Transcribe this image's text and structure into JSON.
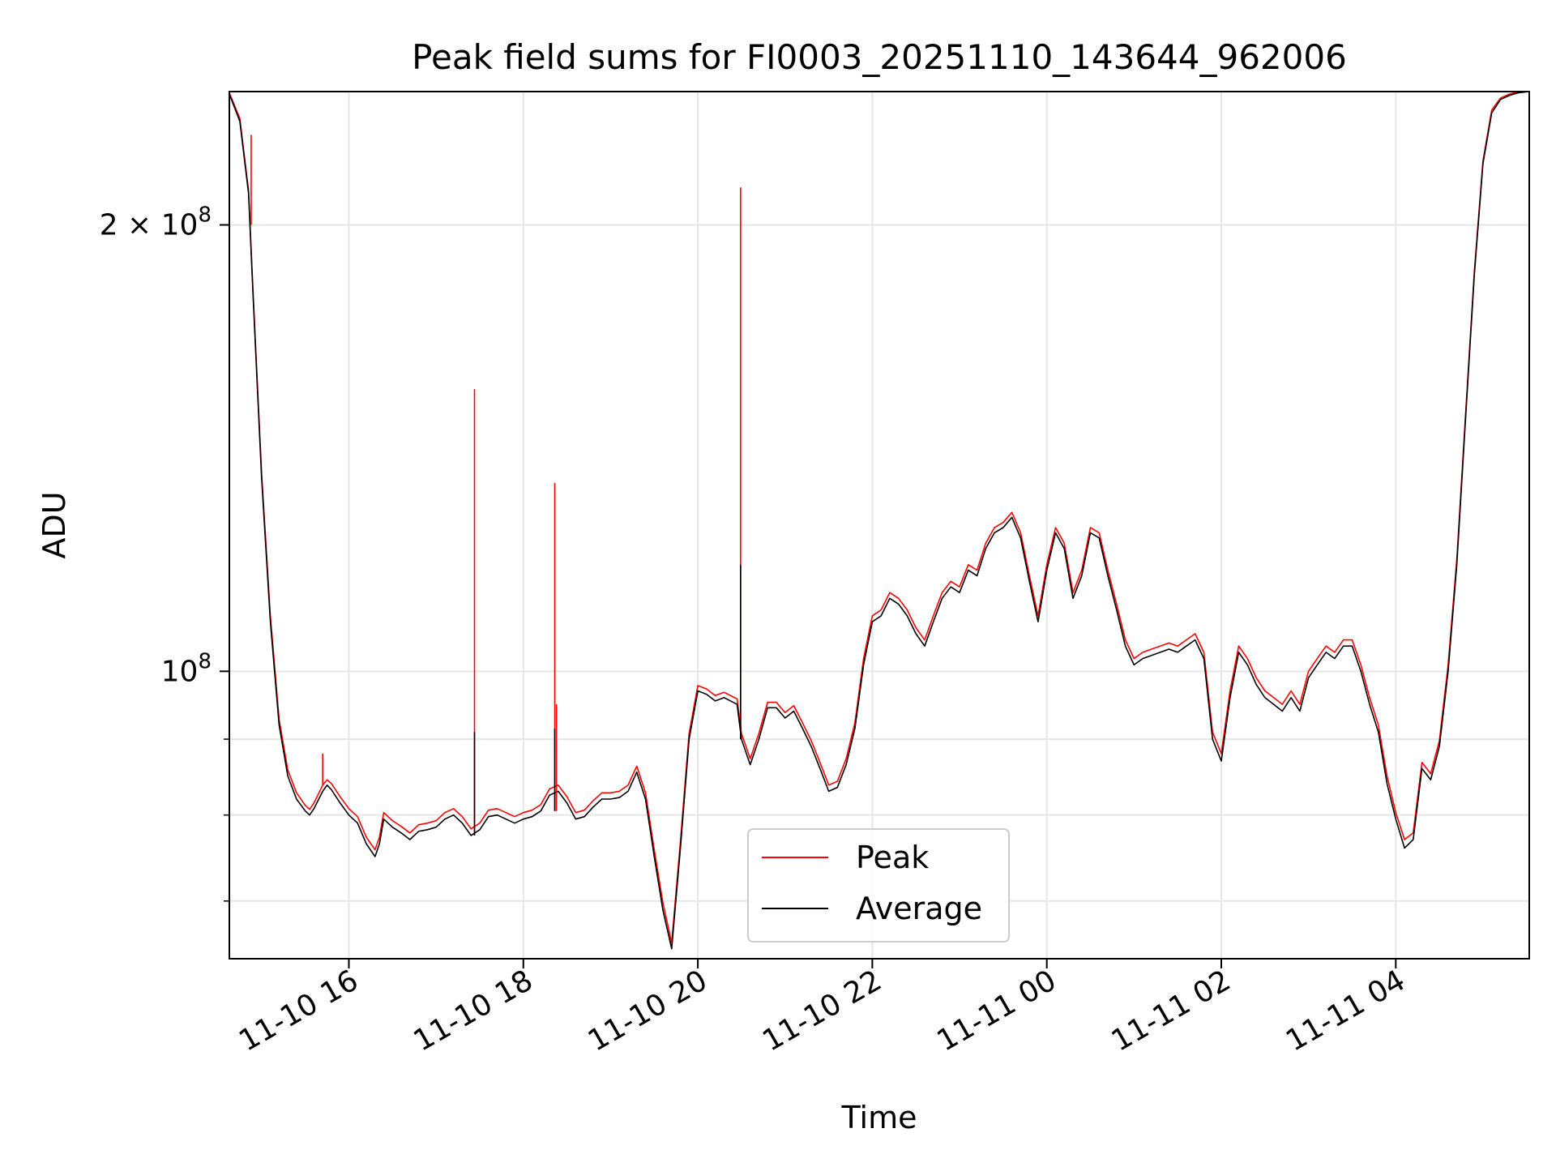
{
  "chart_data": {
    "type": "line",
    "title": "Peak field sums for FI0003_20251110_143644_962006",
    "xlabel": "Time",
    "ylabel": "ADU",
    "yscale": "log",
    "xlim_hours": [
      14.63,
      29.53
    ],
    "ylim": [
      64000000,
      246000000
    ],
    "x_unit": "hours since 11-10 00:00",
    "x_ticks": [
      {
        "value": 16,
        "label": "11-10 16"
      },
      {
        "value": 18,
        "label": "11-10 18"
      },
      {
        "value": 20,
        "label": "11-10 20"
      },
      {
        "value": 22,
        "label": "11-10 22"
      },
      {
        "value": 24,
        "label": "11-11 00"
      },
      {
        "value": 26,
        "label": "11-11 02"
      },
      {
        "value": 28,
        "label": "11-11 04"
      }
    ],
    "y_major_ticks": [
      {
        "value": 100000000,
        "label_base": "10",
        "label_exp": "8",
        "label_coef": ""
      },
      {
        "value": 200000000,
        "label_base": "10",
        "label_exp": "8",
        "label_coef": "2 × "
      }
    ],
    "y_minor_grid": [
      70000000,
      80000000,
      90000000
    ],
    "grid": true,
    "legend": {
      "placement": "lower-center",
      "entries": [
        {
          "name": "Peak",
          "color": "#ff0000"
        },
        {
          "name": "Average",
          "color": "#000000"
        }
      ]
    },
    "series": [
      {
        "name": "Average",
        "color": "#000000",
        "x": [
          14.63,
          14.75,
          14.85,
          14.9,
          15.0,
          15.1,
          15.2,
          15.3,
          15.4,
          15.5,
          15.55,
          15.6,
          15.7,
          15.75,
          15.8,
          15.9,
          16.0,
          16.1,
          16.2,
          16.3,
          16.35,
          16.4,
          16.5,
          16.6,
          16.7,
          16.8,
          16.9,
          17.0,
          17.1,
          17.2,
          17.3,
          17.4,
          17.5,
          17.6,
          17.7,
          17.8,
          17.9,
          18.0,
          18.1,
          18.2,
          18.3,
          18.4,
          18.5,
          18.6,
          18.7,
          18.8,
          18.9,
          19.0,
          19.1,
          19.2,
          19.3,
          19.4,
          19.5,
          19.6,
          19.7,
          19.8,
          19.9,
          20.0,
          20.1,
          20.2,
          20.3,
          20.45,
          20.5,
          20.6,
          20.7,
          20.8,
          20.9,
          21.0,
          21.1,
          21.2,
          21.3,
          21.4,
          21.5,
          21.6,
          21.7,
          21.8,
          21.9,
          22.0,
          22.1,
          22.2,
          22.3,
          22.4,
          22.5,
          22.6,
          22.7,
          22.8,
          22.9,
          23.0,
          23.1,
          23.2,
          23.3,
          23.4,
          23.5,
          23.6,
          23.7,
          23.8,
          23.9,
          24.0,
          24.1,
          24.2,
          24.3,
          24.4,
          24.5,
          24.6,
          24.7,
          24.8,
          24.9,
          25.0,
          25.1,
          25.2,
          25.3,
          25.4,
          25.5,
          25.6,
          25.7,
          25.8,
          25.9,
          26.0,
          26.1,
          26.2,
          26.3,
          26.4,
          26.5,
          26.6,
          26.7,
          26.8,
          26.9,
          27.0,
          27.1,
          27.2,
          27.3,
          27.4,
          27.5,
          27.6,
          27.7,
          27.8,
          27.9,
          28.0,
          28.1,
          28.2,
          28.3,
          28.4,
          28.5,
          28.6,
          28.7,
          28.8,
          28.9,
          29.0,
          29.1,
          29.2,
          29.3,
          29.4,
          29.53
        ],
        "y": [
          245000000,
          235000000,
          210000000,
          180000000,
          135000000,
          108000000,
          92000000,
          85000000,
          82000000,
          80500000,
          80000000,
          80800000,
          83000000,
          83800000,
          83200000,
          81500000,
          80000000,
          79000000,
          76500000,
          75000000,
          76500000,
          79500000,
          78500000,
          77800000,
          77000000,
          78000000,
          78200000,
          78500000,
          79500000,
          80000000,
          79000000,
          77500000,
          78200000,
          79800000,
          80000000,
          79500000,
          79000000,
          79500000,
          79800000,
          80500000,
          82500000,
          83000000,
          81500000,
          79500000,
          79800000,
          81000000,
          82000000,
          82000000,
          82200000,
          83000000,
          85500000,
          82000000,
          75000000,
          69000000,
          65000000,
          76000000,
          90000000,
          97000000,
          96500000,
          95500000,
          96000000,
          95000000,
          90000000,
          86500000,
          90000000,
          94500000,
          94500000,
          93000000,
          94000000,
          91500000,
          89000000,
          86000000,
          83000000,
          83500000,
          86500000,
          91500000,
          101000000,
          108000000,
          109000000,
          112000000,
          111000000,
          109000000,
          106000000,
          104000000,
          108000000,
          112000000,
          114000000,
          113000000,
          117000000,
          116000000,
          121000000,
          124000000,
          125000000,
          127000000,
          123000000,
          115000000,
          108000000,
          117000000,
          124000000,
          121000000,
          112000000,
          116000000,
          124000000,
          123000000,
          116000000,
          110000000,
          104000000,
          101000000,
          102000000,
          102500000,
          103000000,
          103500000,
          103000000,
          104000000,
          105000000,
          102000000,
          90000000,
          87000000,
          96000000,
          103000000,
          101000000,
          98000000,
          96000000,
          95000000,
          94000000,
          96000000,
          94000000,
          99000000,
          101000000,
          103000000,
          102000000,
          104000000,
          104000000,
          100000000,
          95000000,
          91000000,
          84000000,
          79500000,
          76000000,
          77000000,
          86000000,
          84500000,
          89000000,
          100000000,
          118000000,
          148000000,
          185000000,
          220000000,
          238000000,
          243000000,
          244500000,
          245500000,
          246000000
        ]
      },
      {
        "name": "Peak",
        "color": "#ff0000",
        "x": [
          14.63,
          14.75,
          14.85,
          14.9,
          15.0,
          15.1,
          15.2,
          15.3,
          15.4,
          15.5,
          15.55,
          15.6,
          15.7,
          15.75,
          15.8,
          15.9,
          16.0,
          16.1,
          16.2,
          16.3,
          16.35,
          16.4,
          16.5,
          16.6,
          16.7,
          16.8,
          16.9,
          17.0,
          17.1,
          17.2,
          17.3,
          17.4,
          17.5,
          17.6,
          17.7,
          17.8,
          17.9,
          18.0,
          18.1,
          18.2,
          18.3,
          18.4,
          18.5,
          18.6,
          18.7,
          18.8,
          18.9,
          19.0,
          19.1,
          19.2,
          19.3,
          19.4,
          19.5,
          19.6,
          19.7,
          19.8,
          19.9,
          20.0,
          20.1,
          20.2,
          20.3,
          20.45,
          20.5,
          20.6,
          20.7,
          20.8,
          20.9,
          21.0,
          21.1,
          21.2,
          21.3,
          21.4,
          21.5,
          21.6,
          21.7,
          21.8,
          21.9,
          22.0,
          22.1,
          22.2,
          22.3,
          22.4,
          22.5,
          22.6,
          22.7,
          22.8,
          22.9,
          23.0,
          23.1,
          23.2,
          23.3,
          23.4,
          23.5,
          23.6,
          23.7,
          23.8,
          23.9,
          24.0,
          24.1,
          24.2,
          24.3,
          24.4,
          24.5,
          24.6,
          24.7,
          24.8,
          24.9,
          25.0,
          25.1,
          25.2,
          25.3,
          25.4,
          25.5,
          25.6,
          25.7,
          25.8,
          25.9,
          26.0,
          26.1,
          26.2,
          26.3,
          26.4,
          26.5,
          26.6,
          26.7,
          26.8,
          26.9,
          27.0,
          27.1,
          27.2,
          27.3,
          27.4,
          27.5,
          27.6,
          27.7,
          27.8,
          27.9,
          28.0,
          28.1,
          28.2,
          28.3,
          28.4,
          28.5,
          28.6,
          28.7,
          28.8,
          28.9,
          29.0,
          29.1,
          29.2,
          29.3,
          29.4,
          29.53
        ],
        "y": [
          245500000,
          236000000,
          211000000,
          181000000,
          136000000,
          109000000,
          92800000,
          85800000,
          82800000,
          81200000,
          80700000,
          81500000,
          83800000,
          84500000,
          84000000,
          82300000,
          80800000,
          79800000,
          77300000,
          75800000,
          77300000,
          80300000,
          79300000,
          78600000,
          77800000,
          78800000,
          79000000,
          79300000,
          80300000,
          80800000,
          79800000,
          78300000,
          79000000,
          80600000,
          80800000,
          80300000,
          79800000,
          80300000,
          80600000,
          81300000,
          83300000,
          83800000,
          82300000,
          80300000,
          80600000,
          81800000,
          82800000,
          82800000,
          83000000,
          83800000,
          86300000,
          82800000,
          75800000,
          69800000,
          65600000,
          76800000,
          90800000,
          97800000,
          97300000,
          96300000,
          96800000,
          95800000,
          90800000,
          87300000,
          90800000,
          95300000,
          95300000,
          93800000,
          94800000,
          92300000,
          89800000,
          86800000,
          83800000,
          84300000,
          87300000,
          92300000,
          102000000,
          109000000,
          110000000,
          113000000,
          112000000,
          110000000,
          107000000,
          105000000,
          109000000,
          113000000,
          115000000,
          114000000,
          118000000,
          117000000,
          122000000,
          125000000,
          126000000,
          128000000,
          124000000,
          116000000,
          109000000,
          118000000,
          125000000,
          122000000,
          113000000,
          117000000,
          125000000,
          124000000,
          117000000,
          111000000,
          105000000,
          102000000,
          103000000,
          103500000,
          104000000,
          104500000,
          104000000,
          105000000,
          106000000,
          103000000,
          91000000,
          88000000,
          97000000,
          104000000,
          102000000,
          99000000,
          97000000,
          96000000,
          95000000,
          97000000,
          95000000,
          100000000,
          102000000,
          104000000,
          103000000,
          105000000,
          105000000,
          101000000,
          96000000,
          92000000,
          85000000,
          80300000,
          77000000,
          77800000,
          86800000,
          85300000,
          89800000,
          101000000,
          119000000,
          149000000,
          186000000,
          221000000,
          239000000,
          243500000,
          245000000,
          245800000,
          246000000
        ]
      }
    ],
    "spikes": [
      {
        "series": "Peak",
        "x": 14.88,
        "y_from": 200000000,
        "y_to": 230000000
      },
      {
        "series": "Peak",
        "x": 15.7,
        "y_from": 83800000,
        "y_to": 88000000
      },
      {
        "series": "Peak",
        "x": 17.44,
        "y_from": 77500000,
        "y_to": 155000000
      },
      {
        "series": "Peak",
        "x": 18.36,
        "y_from": 80500000,
        "y_to": 134000000
      },
      {
        "series": "Peak",
        "x": 18.38,
        "y_from": 80500000,
        "y_to": 95000000
      },
      {
        "series": "Peak",
        "x": 20.49,
        "y_from": 90000000,
        "y_to": 212000000
      },
      {
        "series": "Average",
        "x": 17.44,
        "y_from": 77500000,
        "y_to": 91000000
      },
      {
        "series": "Average",
        "x": 18.36,
        "y_from": 80500000,
        "y_to": 91500000
      },
      {
        "series": "Average",
        "x": 20.49,
        "y_from": 90000000,
        "y_to": 118000000
      }
    ]
  }
}
